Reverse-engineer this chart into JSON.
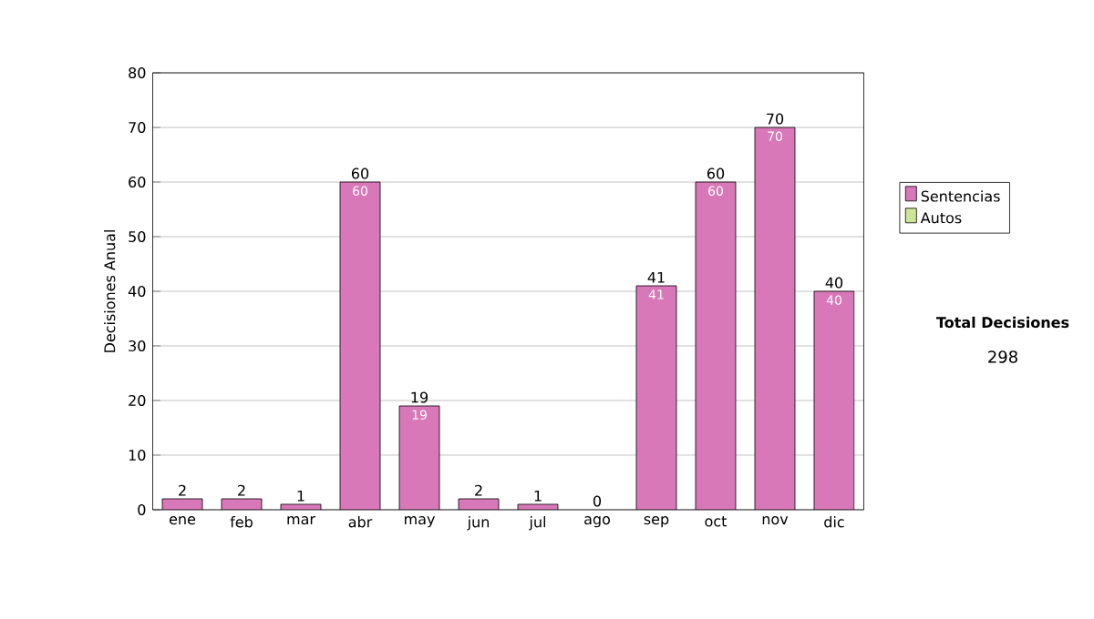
{
  "chart_data": {
    "type": "bar",
    "ylabel": "Decisiones Anual",
    "categories": [
      "ene",
      "feb",
      "mar",
      "abr",
      "may",
      "jun",
      "jul",
      "ago",
      "sep",
      "oct",
      "nov",
      "dic"
    ],
    "series": [
      {
        "name": "Sentencias",
        "color": "#d878b8",
        "values": [
          2,
          2,
          1,
          60,
          19,
          2,
          1,
          0,
          41,
          60,
          70,
          40
        ],
        "value_labels": [
          null,
          null,
          null,
          "60",
          "19",
          null,
          null,
          null,
          "41",
          "60",
          "70",
          "40"
        ]
      },
      {
        "name": "Autos",
        "color": "#cce699",
        "values": [
          0,
          0,
          0,
          0,
          0,
          0,
          0,
          0,
          0,
          0,
          0,
          0
        ]
      }
    ],
    "stacked": true,
    "totals": [
      "2",
      "2",
      "1",
      "60",
      "19",
      "2",
      "1",
      "0",
      "41",
      "60",
      "70",
      "40"
    ],
    "ylim": [
      0,
      80
    ],
    "yticks": [
      0,
      10,
      20,
      30,
      40,
      50,
      60,
      70,
      80
    ],
    "grid": "y",
    "legend": "right",
    "annotations": [
      "Total Decisiones",
      "298"
    ]
  }
}
